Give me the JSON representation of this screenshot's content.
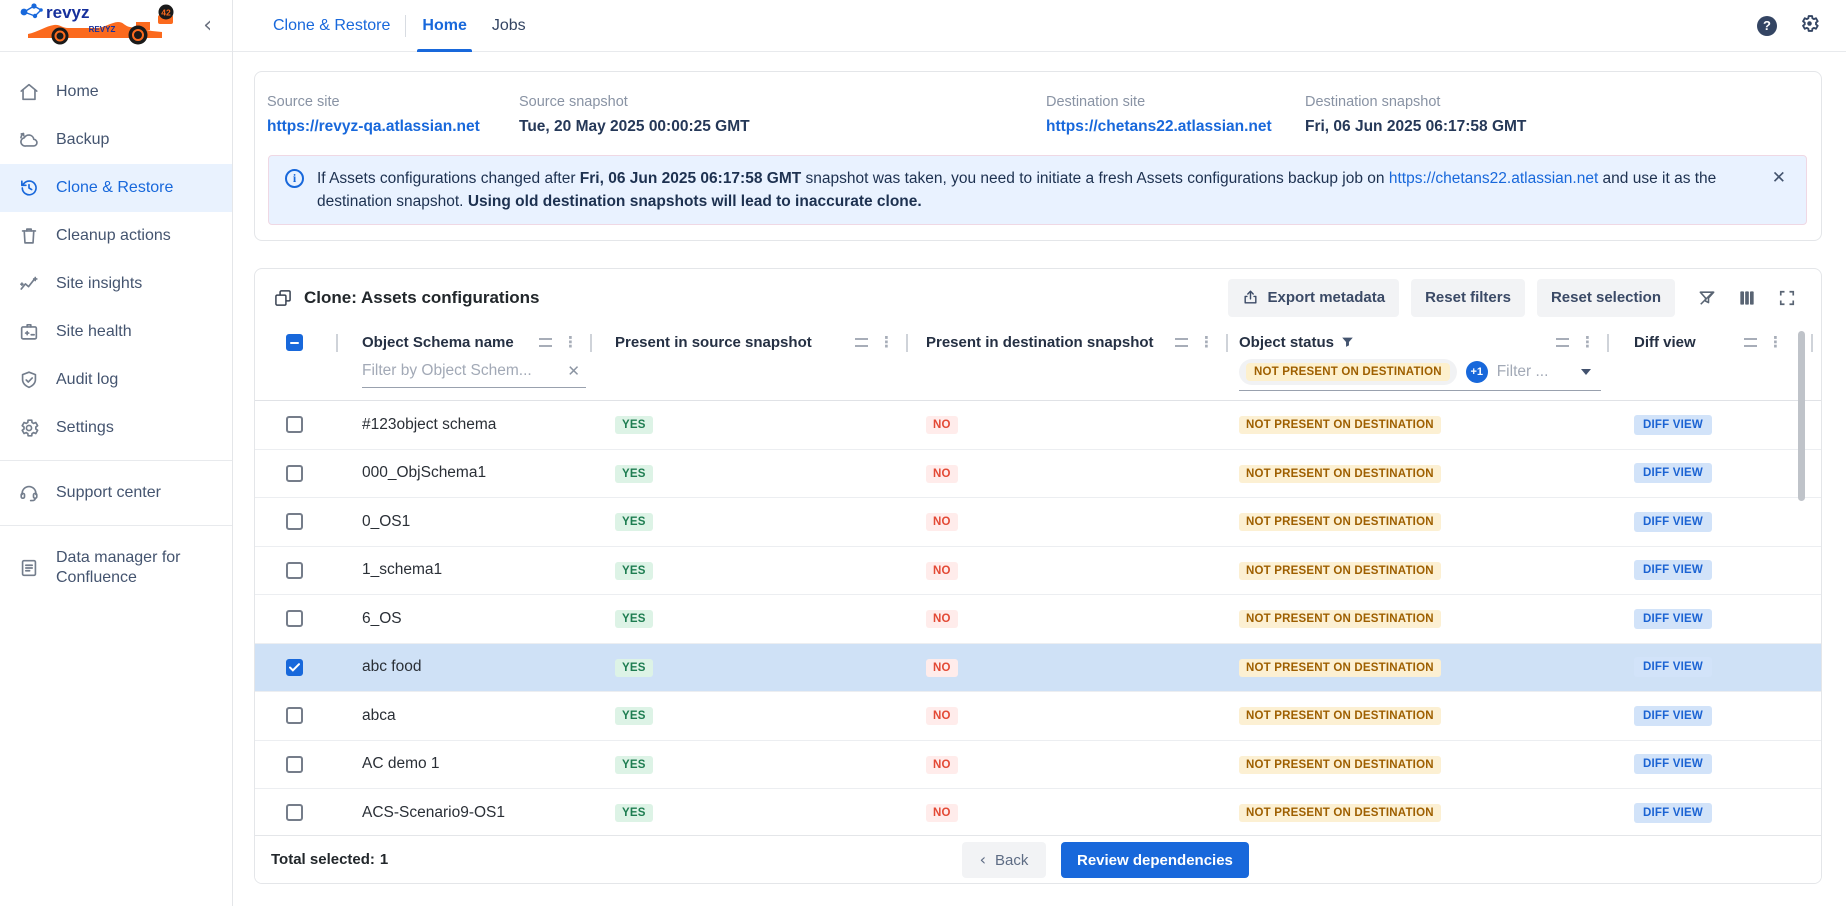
{
  "colors": {
    "primary": "#1868db",
    "selected_row_bg": "#cfe1f6",
    "yes_text": "#1e7d51",
    "yes_bg": "#ddf3e6",
    "no_text": "#e34935",
    "no_bg": "#ffeceb",
    "status_text": "#9e5f00",
    "status_bg": "#fcf0d3",
    "diff_text": "#1b63d3",
    "diff_bg": "#d2e3f9",
    "alert_bg": "#e9f2ff"
  },
  "sidebar": {
    "logo_text": "revyz",
    "logo_car_label": "REVYZ",
    "logo_car_number": "42",
    "collapse_icon": "‹",
    "items": [
      {
        "label": "Home",
        "icon": "home-icon",
        "active": false
      },
      {
        "label": "Backup",
        "icon": "cloud-backup-icon",
        "active": false
      },
      {
        "label": "Clone & Restore",
        "icon": "history-icon",
        "active": true
      },
      {
        "label": "Cleanup actions",
        "icon": "trash-icon",
        "active": false
      },
      {
        "label": "Site insights",
        "icon": "trend-icon",
        "active": false
      },
      {
        "label": "Site health",
        "icon": "health-badge-icon",
        "active": false
      },
      {
        "label": "Audit log",
        "icon": "shield-check-icon",
        "active": false
      },
      {
        "label": "Settings",
        "icon": "gear-icon",
        "active": false
      }
    ],
    "support_items": [
      {
        "label": "Support center",
        "icon": "headset-icon",
        "active": false
      }
    ],
    "footer_items": [
      {
        "label": "Data manager for Confluence",
        "icon": "document-icon",
        "active": false
      }
    ]
  },
  "topbar": {
    "breadcrumb": "Clone & Restore",
    "tabs": [
      {
        "label": "Home",
        "active": true
      },
      {
        "label": "Jobs",
        "active": false
      }
    ],
    "help_glyph": "?"
  },
  "summary": {
    "fields": [
      {
        "label": "Source site",
        "value": "https://revyz-qa.atlassian.net",
        "link": true
      },
      {
        "label": "Source snapshot",
        "value": "Tue, 20 May 2025 00:00:25 GMT",
        "link": false
      },
      {
        "label": "Destination site",
        "value": "https://chetans22.atlassian.net",
        "link": true
      },
      {
        "label": "Destination snapshot",
        "value": "Fri, 06 Jun 2025 06:17:58 GMT",
        "link": false
      }
    ]
  },
  "alert": {
    "text1": "If Assets configurations changed after ",
    "date": "Fri, 06 Jun 2025 06:17:58 GMT",
    "text2": " snapshot was taken, you need to initiate a fresh Assets configurations backup job on ",
    "link": "https://chetans22.atlassian.net",
    "text3": " and use it as the destination snapshot. ",
    "warning": "Using old destination snapshots will lead to inaccurate clone.",
    "close_glyph": "✕"
  },
  "table": {
    "title": "Clone: Assets configurations",
    "toolbar": {
      "export_label": "Export metadata",
      "reset_filters_label": "Reset filters",
      "reset_selection_label": "Reset selection"
    },
    "columns": [
      {
        "label": "Object Schema name"
      },
      {
        "label": "Present in source snapshot"
      },
      {
        "label": "Present in destination snapshot"
      },
      {
        "label": "Object status"
      },
      {
        "label": "Diff view"
      }
    ],
    "filters": {
      "schema_placeholder": "Filter by Object Schem...",
      "schema_clear_glyph": "✕",
      "status_selected": "NOT PRESENT ON DESTINATION",
      "status_more": "+1",
      "status_placeholder": "Filter ..."
    },
    "rows": [
      {
        "name": "#123object schema",
        "source": "YES",
        "destination": "NO",
        "status": "NOT PRESENT ON DESTINATION",
        "action": "DIFF VIEW",
        "selected": false
      },
      {
        "name": "000_ObjSchema1",
        "source": "YES",
        "destination": "NO",
        "status": "NOT PRESENT ON DESTINATION",
        "action": "DIFF VIEW",
        "selected": false
      },
      {
        "name": "0_OS1",
        "source": "YES",
        "destination": "NO",
        "status": "NOT PRESENT ON DESTINATION",
        "action": "DIFF VIEW",
        "selected": false
      },
      {
        "name": "1_schema1",
        "source": "YES",
        "destination": "NO",
        "status": "NOT PRESENT ON DESTINATION",
        "action": "DIFF VIEW",
        "selected": false
      },
      {
        "name": "6_OS",
        "source": "YES",
        "destination": "NO",
        "status": "NOT PRESENT ON DESTINATION",
        "action": "DIFF VIEW",
        "selected": false
      },
      {
        "name": "abc food",
        "source": "YES",
        "destination": "NO",
        "status": "NOT PRESENT ON DESTINATION",
        "action": "DIFF VIEW",
        "selected": true
      },
      {
        "name": "abca",
        "source": "YES",
        "destination": "NO",
        "status": "NOT PRESENT ON DESTINATION",
        "action": "DIFF VIEW",
        "selected": false
      },
      {
        "name": "AC demo 1",
        "source": "YES",
        "destination": "NO",
        "status": "NOT PRESENT ON DESTINATION",
        "action": "DIFF VIEW",
        "selected": false
      },
      {
        "name": "ACS-Scenario9-OS1",
        "source": "YES",
        "destination": "NO",
        "status": "NOT PRESENT ON DESTINATION",
        "action": "DIFF VIEW",
        "selected": false
      }
    ],
    "footer": {
      "total_label": "Total selected:",
      "total_value": "1",
      "back_label": "Back",
      "back_chevron": "‹",
      "review_label": "Review dependencies"
    }
  }
}
